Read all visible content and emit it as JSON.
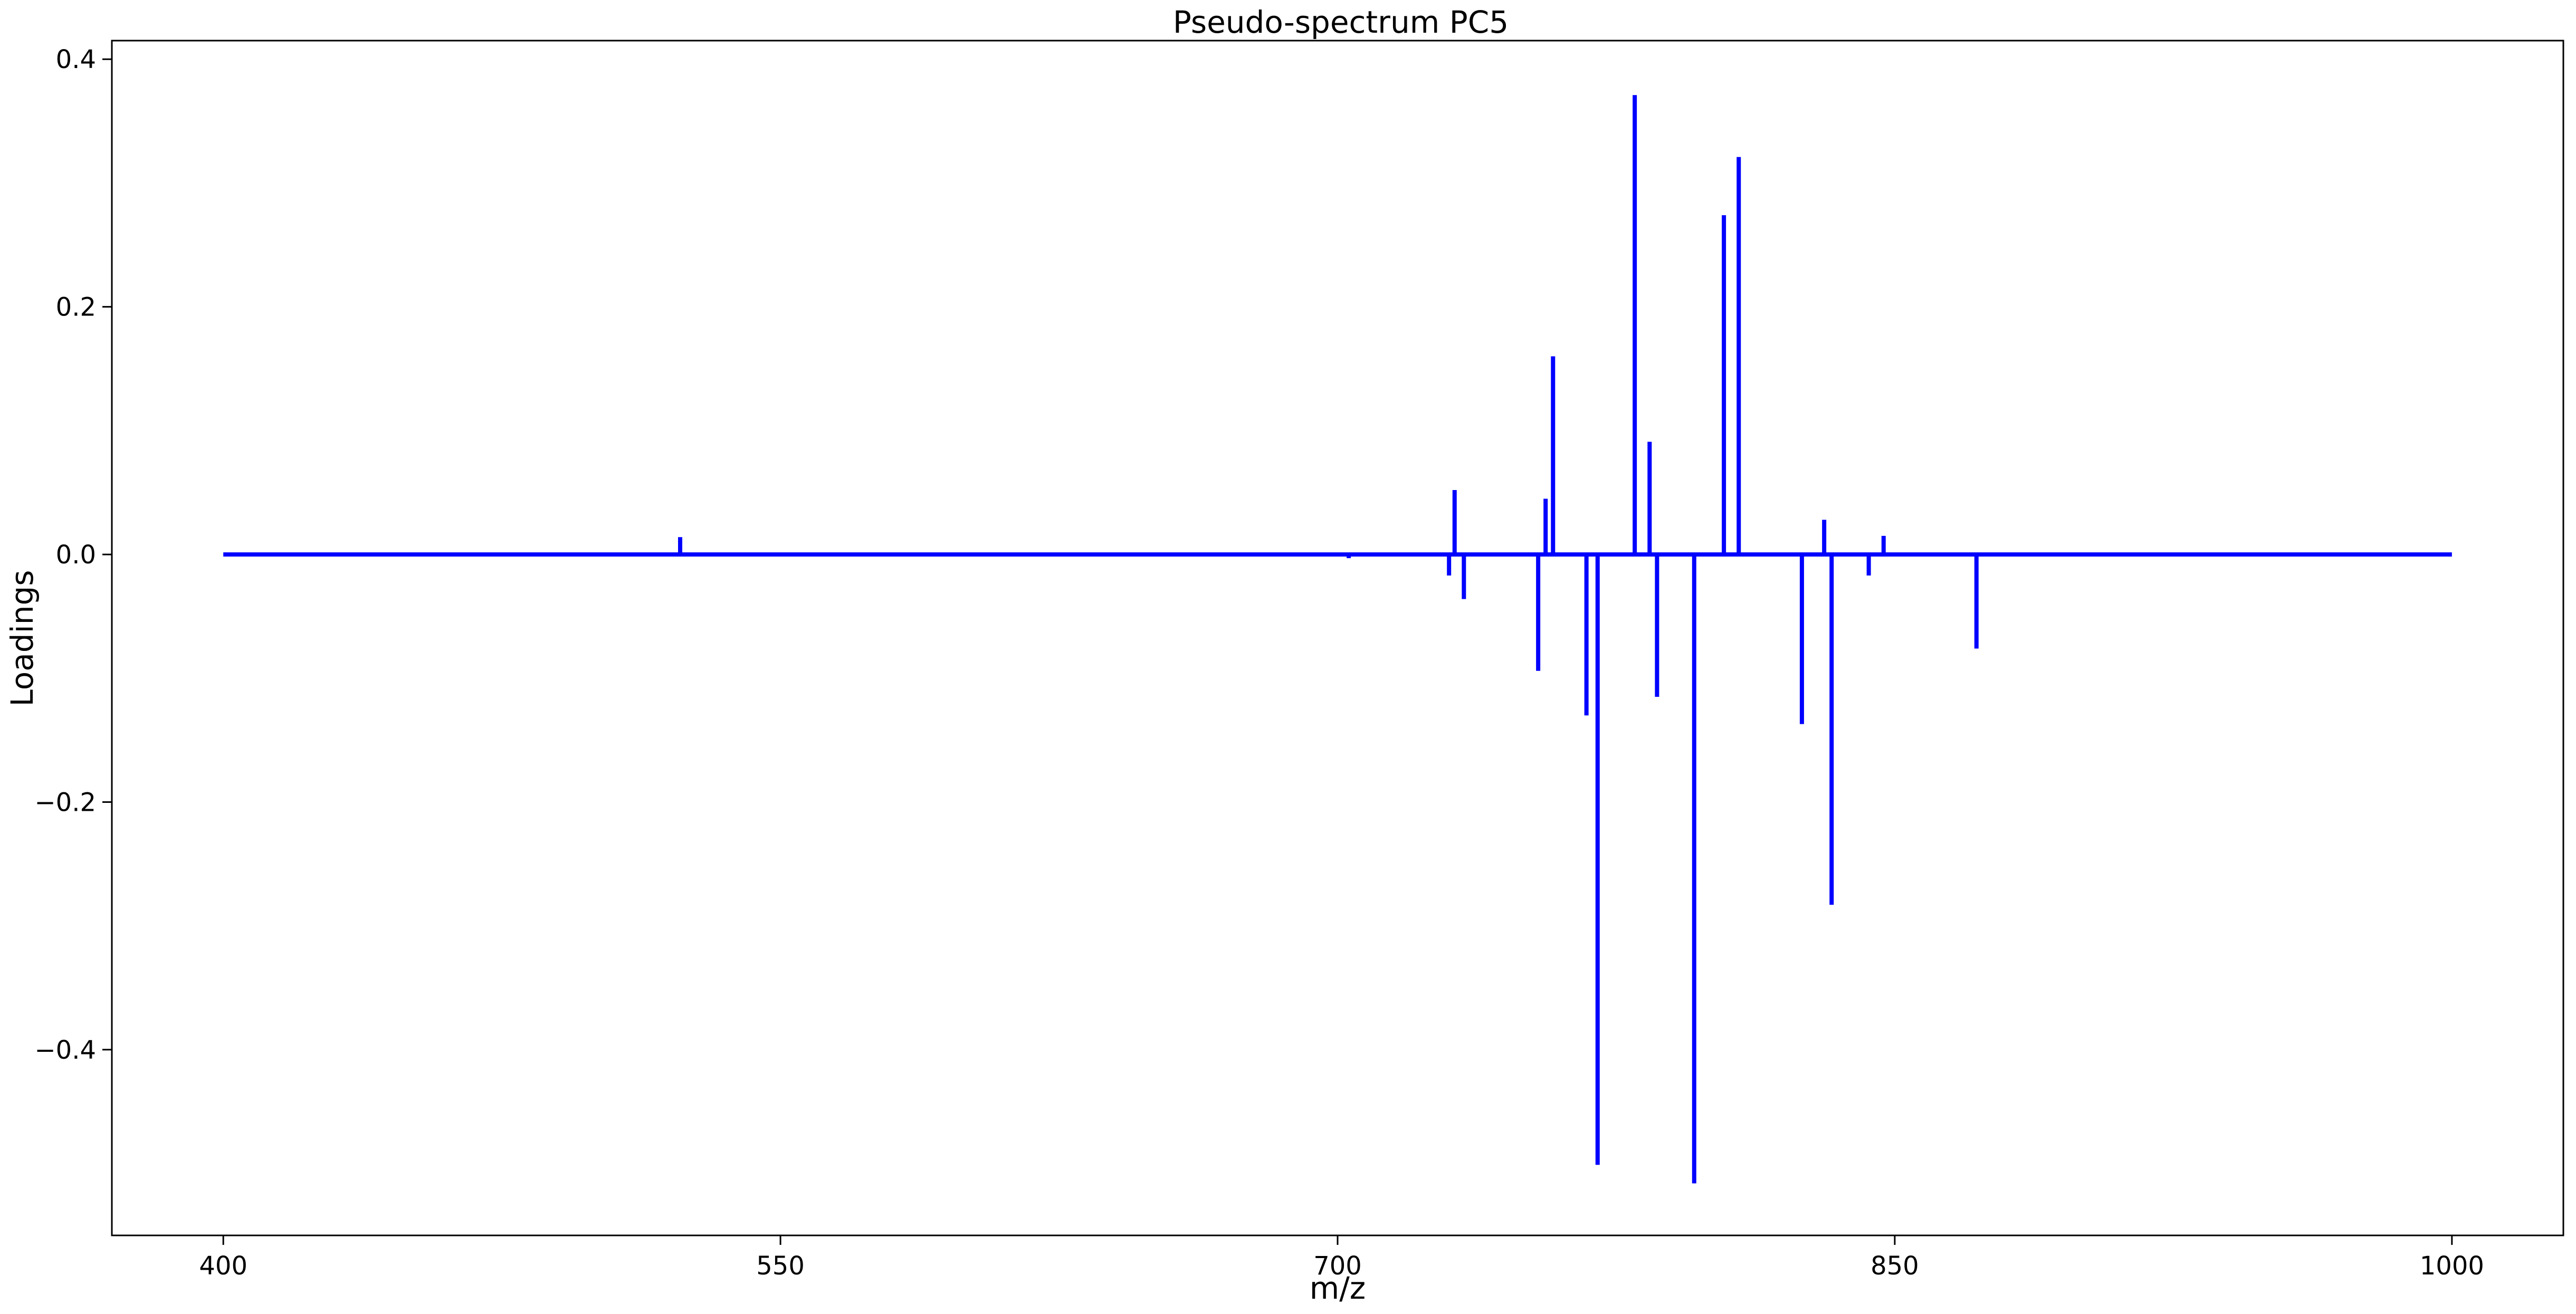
{
  "chart_data": {
    "type": "line",
    "title": "Pseudo-spectrum PC5",
    "xlabel": "m/z",
    "ylabel": "Loadings",
    "xlim": [
      370,
      1030
    ],
    "ylim": [
      -0.55,
      0.415
    ],
    "xticks": [
      400,
      550,
      700,
      850,
      1000
    ],
    "xtick_labels": [
      "400",
      "550",
      "700",
      "850",
      "1000"
    ],
    "yticks": [
      -0.4,
      -0.2,
      0.0,
      0.2,
      0.4
    ],
    "ytick_labels": [
      "−0.4",
      "−0.2",
      "0.0",
      "0.2",
      "0.4"
    ],
    "grid": false,
    "line_color": "#0000ff",
    "series": [
      {
        "x_range": [
          400,
          1000
        ],
        "baseline": 0.0,
        "peaks": [
          {
            "x": 523,
            "y": 0.014
          },
          {
            "x": 703,
            "y": -0.003
          },
          {
            "x": 730,
            "y": -0.017
          },
          {
            "x": 731.5,
            "y": 0.052
          },
          {
            "x": 734,
            "y": -0.036
          },
          {
            "x": 754,
            "y": -0.094
          },
          {
            "x": 756,
            "y": 0.045
          },
          {
            "x": 758,
            "y": 0.16
          },
          {
            "x": 767,
            "y": -0.13
          },
          {
            "x": 770,
            "y": -0.493
          },
          {
            "x": 780,
            "y": 0.371
          },
          {
            "x": 784,
            "y": 0.091
          },
          {
            "x": 786,
            "y": -0.115
          },
          {
            "x": 796,
            "y": -0.508
          },
          {
            "x": 804,
            "y": 0.274
          },
          {
            "x": 808,
            "y": 0.321
          },
          {
            "x": 825,
            "y": -0.137
          },
          {
            "x": 831,
            "y": 0.028
          },
          {
            "x": 833,
            "y": -0.283
          },
          {
            "x": 843,
            "y": -0.017
          },
          {
            "x": 847,
            "y": 0.015
          },
          {
            "x": 872,
            "y": -0.076
          }
        ]
      }
    ]
  }
}
